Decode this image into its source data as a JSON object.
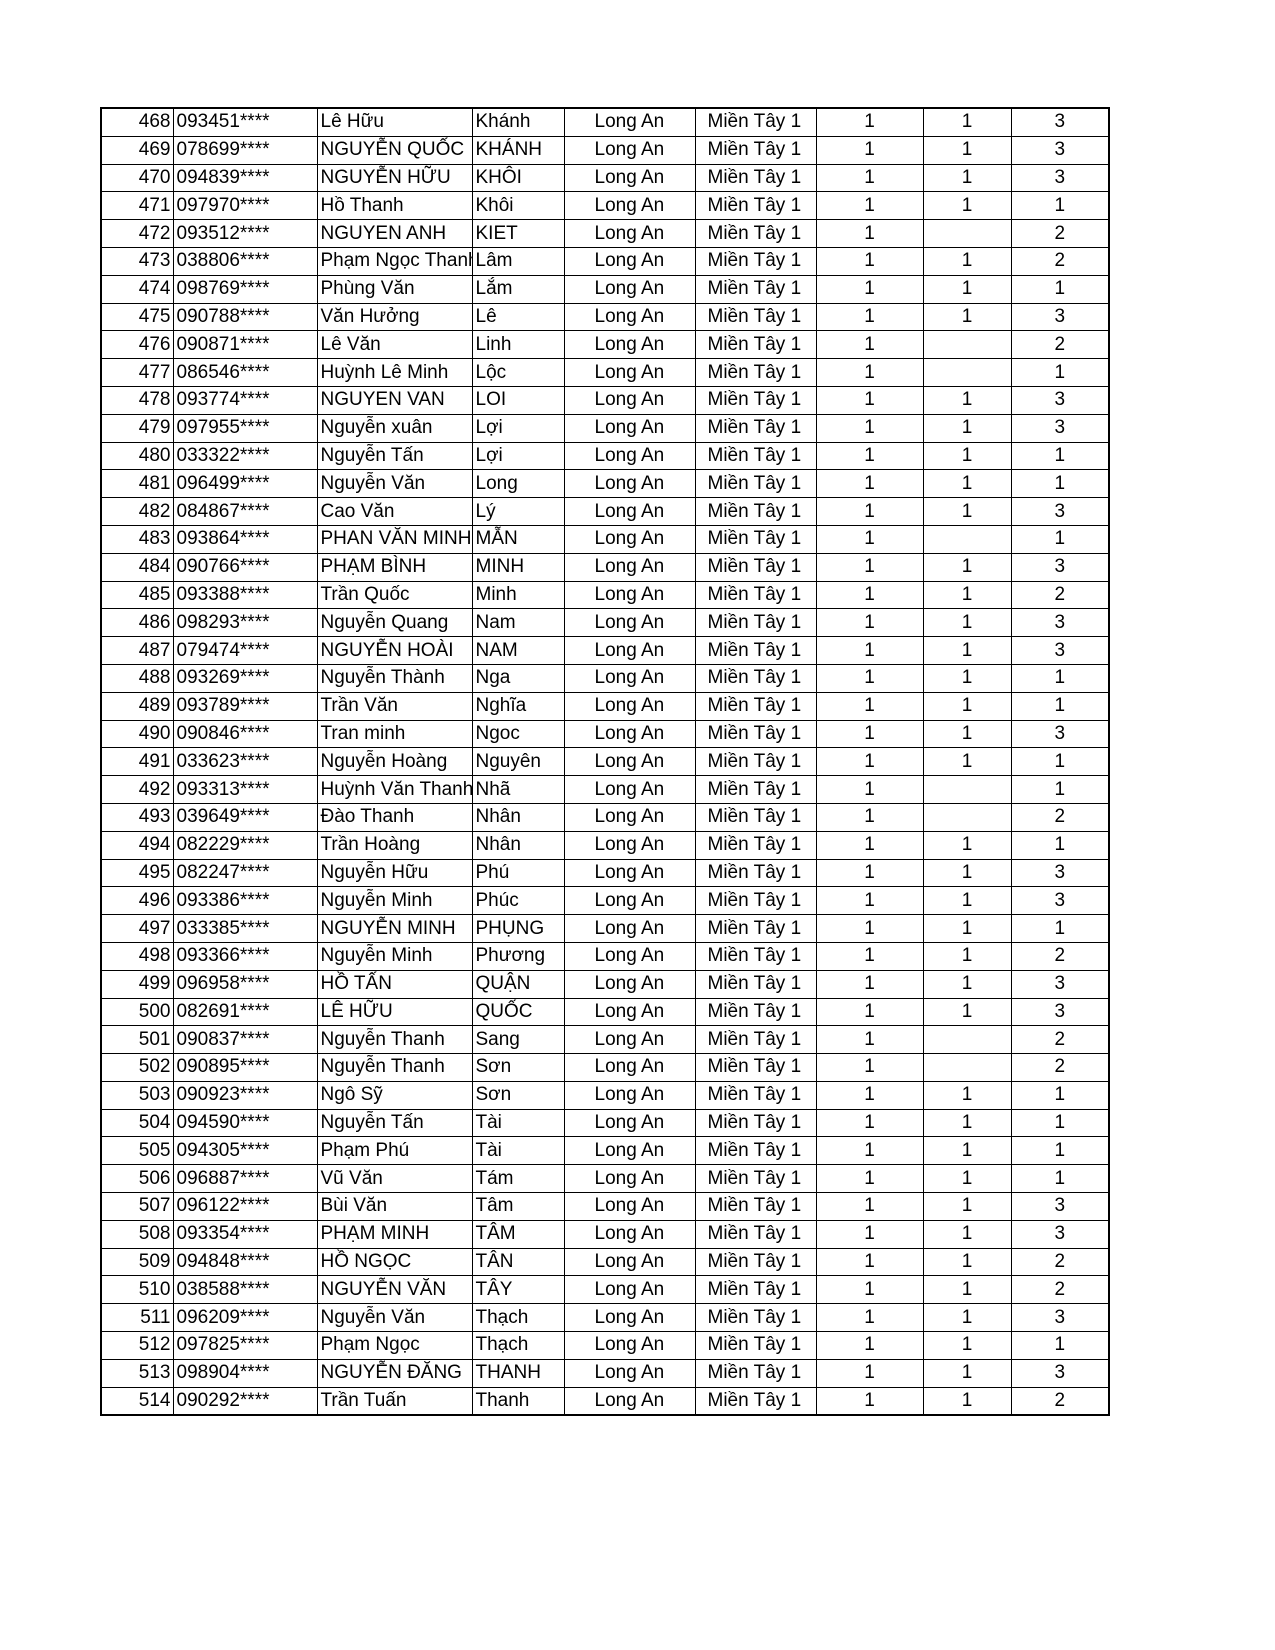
{
  "table": {
    "rows": [
      [
        "468",
        "093451****",
        "Lê Hữu",
        "Khánh",
        "Long An",
        "Miền Tây 1",
        "1",
        "1",
        "3"
      ],
      [
        "469",
        "078699****",
        "NGUYỄN QUỐC",
        "KHÁNH",
        "Long An",
        "Miền Tây 1",
        "1",
        "1",
        "3"
      ],
      [
        "470",
        "094839****",
        "NGUYỄN HỮU",
        "KHÔI",
        "Long An",
        "Miền Tây 1",
        "1",
        "1",
        "3"
      ],
      [
        "471",
        "097970****",
        "Hồ Thanh",
        "Khôi",
        "Long An",
        "Miền Tây 1",
        "1",
        "1",
        "1"
      ],
      [
        "472",
        "093512****",
        "NGUYEN ANH",
        "KIET",
        "Long An",
        "Miền Tây 1",
        "1",
        "",
        "2"
      ],
      [
        "473",
        "038806****",
        "Phạm Ngọc Thanh",
        "Lâm",
        "Long An",
        "Miền Tây 1",
        "1",
        "1",
        "2"
      ],
      [
        "474",
        "098769****",
        "Phùng Văn",
        "Lắm",
        "Long An",
        "Miền Tây 1",
        "1",
        "1",
        "1"
      ],
      [
        "475",
        "090788****",
        "Văn Hưởng",
        "Lê",
        "Long An",
        "Miền Tây 1",
        "1",
        "1",
        "3"
      ],
      [
        "476",
        "090871****",
        "Lê Văn",
        "Linh",
        "Long An",
        "Miền Tây 1",
        "1",
        "",
        "2"
      ],
      [
        "477",
        "086546****",
        "Huỳnh Lê Minh",
        "Lộc",
        "Long An",
        "Miền Tây 1",
        "1",
        "",
        "1"
      ],
      [
        "478",
        "093774****",
        "NGUYEN VAN",
        "LOI",
        "Long An",
        "Miền Tây 1",
        "1",
        "1",
        "3"
      ],
      [
        "479",
        "097955****",
        "Nguyễn xuân",
        "Lợi",
        "Long An",
        "Miền Tây 1",
        "1",
        "1",
        "3"
      ],
      [
        "480",
        "033322****",
        "Nguyễn Tấn",
        "Lợi",
        "Long An",
        "Miền Tây 1",
        "1",
        "1",
        "1"
      ],
      [
        "481",
        "096499****",
        "Nguyễn Văn",
        "Long",
        "Long An",
        "Miền Tây 1",
        "1",
        "1",
        "1"
      ],
      [
        "482",
        "084867****",
        "Cao Văn",
        "Lý",
        "Long An",
        "Miền Tây 1",
        "1",
        "1",
        "3"
      ],
      [
        "483",
        "093864****",
        "PHAN VĂN MINH",
        "MẪN",
        "Long An",
        "Miền Tây 1",
        "1",
        "",
        "1"
      ],
      [
        "484",
        "090766****",
        "PHẠM BÌNH",
        "MINH",
        "Long An",
        "Miền Tây 1",
        "1",
        "1",
        "3"
      ],
      [
        "485",
        "093388****",
        "Trần Quốc",
        "Minh",
        "Long An",
        "Miền Tây 1",
        "1",
        "1",
        "2"
      ],
      [
        "486",
        "098293****",
        "Nguyễn Quang",
        "Nam",
        "Long An",
        "Miền Tây 1",
        "1",
        "1",
        "3"
      ],
      [
        "487",
        "079474****",
        "NGUYỄN HOÀI",
        "NAM",
        "Long An",
        "Miền Tây 1",
        "1",
        "1",
        "3"
      ],
      [
        "488",
        "093269****",
        "Nguyễn Thành",
        "Nga",
        "Long An",
        "Miền Tây 1",
        "1",
        "1",
        "1"
      ],
      [
        "489",
        "093789****",
        "Trần Văn",
        "Nghĩa",
        "Long An",
        "Miền Tây 1",
        "1",
        "1",
        "1"
      ],
      [
        "490",
        "090846****",
        "Tran minh",
        "Ngoc",
        "Long An",
        "Miền Tây 1",
        "1",
        "1",
        "3"
      ],
      [
        "491",
        "033623****",
        "Nguyễn Hoàng",
        "Nguyên",
        "Long An",
        "Miền Tây 1",
        "1",
        "1",
        "1"
      ],
      [
        "492",
        "093313****",
        "Huỳnh Văn Thanh",
        "Nhã",
        "Long An",
        "Miền Tây 1",
        "1",
        "",
        "1"
      ],
      [
        "493",
        "039649****",
        "Đào Thanh",
        "Nhân",
        "Long An",
        "Miền Tây 1",
        "1",
        "",
        "2"
      ],
      [
        "494",
        "082229****",
        "Trần Hoàng",
        "Nhân",
        "Long An",
        "Miền Tây 1",
        "1",
        "1",
        "1"
      ],
      [
        "495",
        "082247****",
        "Nguyễn Hữu",
        "Phú",
        "Long An",
        "Miền Tây 1",
        "1",
        "1",
        "3"
      ],
      [
        "496",
        "093386****",
        "Nguyễn Minh",
        "Phúc",
        "Long An",
        "Miền Tây 1",
        "1",
        "1",
        "3"
      ],
      [
        "497",
        "033385****",
        "NGUYỄN MINH",
        "PHỤNG",
        "Long An",
        "Miền Tây 1",
        "1",
        "1",
        "1"
      ],
      [
        "498",
        "093366****",
        "Nguyễn Minh",
        "Phương",
        "Long An",
        "Miền Tây 1",
        "1",
        "1",
        "2"
      ],
      [
        "499",
        "096958****",
        "HỒ TẤN",
        "QUẬN",
        "Long An",
        "Miền Tây 1",
        "1",
        "1",
        "3"
      ],
      [
        "500",
        "082691****",
        "LÊ HỮU",
        "QUỐC",
        "Long An",
        "Miền Tây 1",
        "1",
        "1",
        "3"
      ],
      [
        "501",
        "090837****",
        "Nguyễn Thanh",
        "Sang",
        "Long An",
        "Miền Tây 1",
        "1",
        "",
        "2"
      ],
      [
        "502",
        "090895****",
        "Nguyễn Thanh",
        "Sơn",
        "Long An",
        "Miền Tây 1",
        "1",
        "",
        "2"
      ],
      [
        "503",
        "090923****",
        "Ngô Sỹ",
        "Sơn",
        "Long An",
        "Miền Tây 1",
        "1",
        "1",
        "1"
      ],
      [
        "504",
        "094590****",
        "Nguyễn Tấn",
        "Tài",
        "Long An",
        "Miền Tây 1",
        "1",
        "1",
        "1"
      ],
      [
        "505",
        "094305****",
        "Phạm Phú",
        "Tài",
        "Long An",
        "Miền Tây 1",
        "1",
        "1",
        "1"
      ],
      [
        "506",
        "096887****",
        "Vũ Văn",
        "Tám",
        "Long An",
        "Miền Tây 1",
        "1",
        "1",
        "1"
      ],
      [
        "507",
        "096122****",
        "Bùi Văn",
        "Tâm",
        "Long An",
        "Miền Tây 1",
        "1",
        "1",
        "3"
      ],
      [
        "508",
        "093354****",
        "PHẠM MINH",
        "TÂM",
        "Long An",
        "Miền Tây 1",
        "1",
        "1",
        "3"
      ],
      [
        "509",
        "094848****",
        "HỒ NGỌC",
        "TÂN",
        "Long An",
        "Miền Tây 1",
        "1",
        "1",
        "2"
      ],
      [
        "510",
        "038588****",
        "NGUYỄN VĂN",
        "TÂY",
        "Long An",
        "Miền Tây 1",
        "1",
        "1",
        "2"
      ],
      [
        "511",
        "096209****",
        "Nguyễn Văn",
        "Thạch",
        "Long An",
        "Miền Tây 1",
        "1",
        "1",
        "3"
      ],
      [
        "512",
        "097825****",
        "Phạm Ngọc",
        "Thạch",
        "Long An",
        "Miền Tây 1",
        "1",
        "1",
        "1"
      ],
      [
        "513",
        "098904****",
        "NGUYỄN ĐĂNG",
        "THANH",
        "Long An",
        "Miền Tây 1",
        "1",
        "1",
        "3"
      ],
      [
        "514",
        "090292****",
        "Trần Tuấn",
        "Thanh",
        "Long An",
        "Miền Tây 1",
        "1",
        "1",
        "2"
      ]
    ]
  }
}
